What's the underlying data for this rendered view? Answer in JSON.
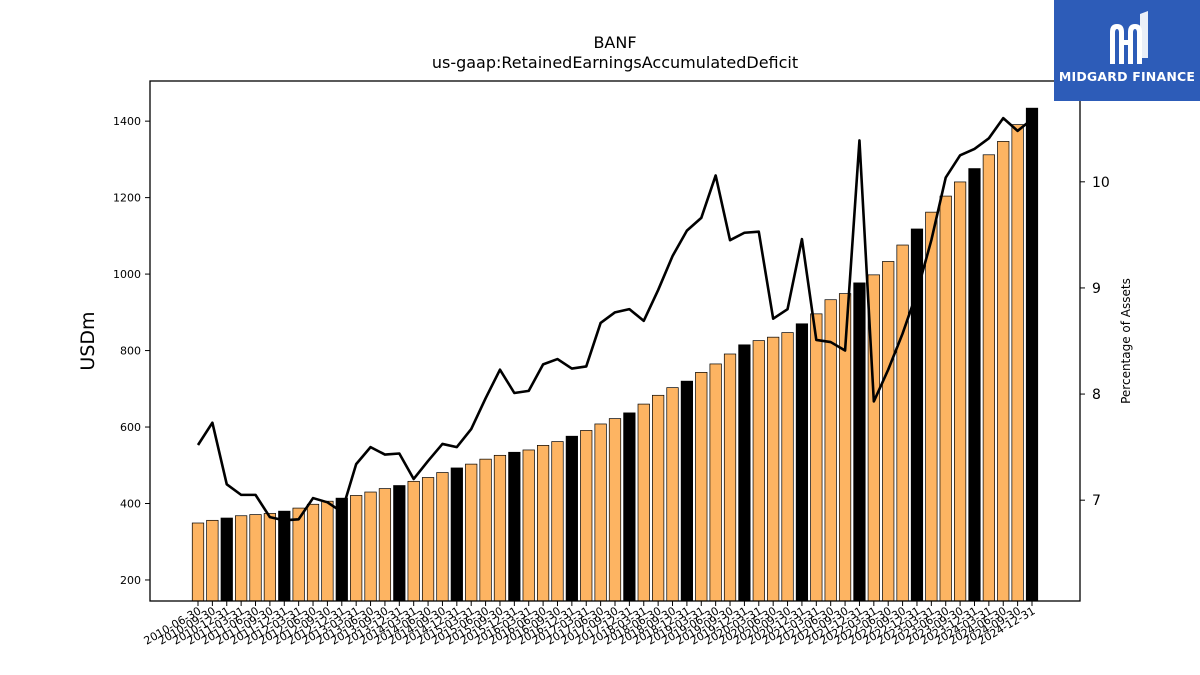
{
  "branding": {
    "logo_text": "MIDGARD FINANCE",
    "logo_bg": "#2d5cb8",
    "logo_icon": "midgard-m-icon"
  },
  "chart_data": {
    "type": "bar",
    "title": "BANF",
    "subtitle": "us-gaap:RetainedEarningsAccumulatedDeficit",
    "ylabel": "USDm",
    "y2label": "Percentage of Assets",
    "ylim": [
      145,
      1505
    ],
    "y2lim": [
      6.05,
      10.95
    ],
    "yticks": [
      200,
      400,
      600,
      800,
      1000,
      1200,
      1400
    ],
    "y2ticks": [
      7,
      8,
      9,
      10
    ],
    "colors": {
      "bar_regular": "#fdb462",
      "bar_highlight": "#000000",
      "line": "#000000",
      "edge": "#000000"
    },
    "categories": [
      "2010-06-30",
      "2010-09-30",
      "2010-12-31",
      "2011-03-31",
      "2011-06-30",
      "2011-09-30",
      "2011-12-31",
      "2012-03-31",
      "2012-06-30",
      "2012-09-30",
      "2012-12-31",
      "2013-03-31",
      "2013-06-30",
      "2013-09-30",
      "2013-12-31",
      "2014-03-31",
      "2014-06-30",
      "2014-09-30",
      "2014-12-31",
      "2015-03-31",
      "2015-06-30",
      "2015-09-30",
      "2015-12-31",
      "2016-03-31",
      "2016-06-30",
      "2016-09-30",
      "2016-12-31",
      "2017-03-31",
      "2017-06-30",
      "2017-09-30",
      "2017-12-31",
      "2018-03-31",
      "2018-06-30",
      "2018-09-30",
      "2018-12-31",
      "2019-03-31",
      "2019-06-30",
      "2019-09-30",
      "2019-12-31",
      "2020-03-31",
      "2020-06-30",
      "2020-09-30",
      "2020-12-31",
      "2021-03-31",
      "2021-06-30",
      "2021-09-30",
      "2021-12-31",
      "2022-03-31",
      "2022-06-30",
      "2022-09-30",
      "2022-12-31",
      "2023-03-31",
      "2023-06-30",
      "2023-09-30",
      "2023-12-31",
      "2024-03-31",
      "2024-06-30",
      "2024-09-30",
      "2024-12-31"
    ],
    "series": [
      {
        "type": "bar",
        "values": [
          349,
          356,
          362,
          368,
          371,
          374,
          380,
          388,
          398,
          406,
          414,
          421,
          430,
          439,
          447,
          458,
          468,
          481,
          493,
          503,
          516,
          526,
          534,
          540,
          552,
          562,
          576,
          591,
          608,
          622,
          637,
          660,
          683,
          703,
          720,
          743,
          765,
          791,
          815,
          826,
          835,
          847,
          870,
          896,
          933,
          949,
          977,
          998,
          1033,
          1076,
          1118,
          1162,
          1204,
          1241,
          1276,
          1312,
          1347,
          1391,
          1434
        ],
        "highlight": [
          false,
          false,
          true,
          false,
          false,
          false,
          true,
          false,
          false,
          false,
          true,
          false,
          false,
          false,
          true,
          false,
          false,
          false,
          true,
          false,
          false,
          false,
          true,
          false,
          false,
          false,
          true,
          false,
          false,
          false,
          true,
          false,
          false,
          false,
          true,
          false,
          false,
          false,
          true,
          false,
          false,
          false,
          true,
          false,
          false,
          false,
          true,
          false,
          false,
          false,
          true,
          false,
          false,
          false,
          true,
          false,
          false,
          false,
          true
        ]
      },
      {
        "type": "line",
        "axis": "right",
        "values": [
          7.52,
          7.73,
          7.15,
          7.05,
          7.05,
          6.84,
          6.81,
          6.82,
          7.02,
          6.98,
          6.89,
          7.34,
          7.5,
          7.43,
          7.44,
          7.2,
          7.37,
          7.53,
          7.5,
          7.67,
          7.96,
          8.23,
          8.01,
          8.03,
          8.28,
          8.33,
          8.24,
          8.26,
          8.67,
          8.77,
          8.8,
          8.69,
          8.98,
          9.3,
          9.54,
          9.66,
          10.06,
          9.45,
          9.52,
          9.53,
          8.71,
          8.8,
          9.46,
          8.51,
          8.49,
          8.41,
          10.39,
          7.93,
          8.23,
          8.57,
          8.96,
          9.45,
          10.04,
          10.25,
          10.31,
          10.41,
          10.6,
          10.48,
          10.59
        ]
      }
    ],
    "legend": "none",
    "grid": false
  }
}
